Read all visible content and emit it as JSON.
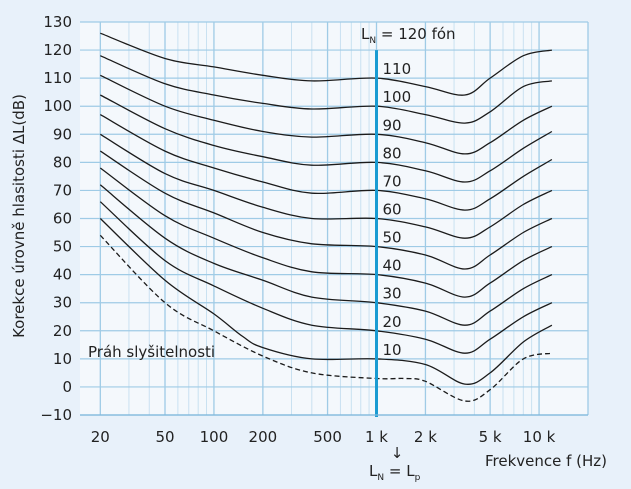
{
  "chart_data": {
    "type": "line",
    "title": "",
    "ylabel": "Korekce úrovně hlasitosti ΔL(dB)",
    "xlabel": "Frekvence f (Hz)",
    "x_scale": "log",
    "xlim": [
      15,
      20000
    ],
    "ylim": [
      -10,
      130
    ],
    "y_ticks": [
      -10,
      0,
      10,
      20,
      30,
      40,
      50,
      60,
      70,
      80,
      90,
      100,
      110,
      120,
      130
    ],
    "x_ticks": [
      {
        "value": 20,
        "label": "20"
      },
      {
        "value": 50,
        "label": "50"
      },
      {
        "value": 100,
        "label": "100"
      },
      {
        "value": 200,
        "label": "200"
      },
      {
        "value": 500,
        "label": "500"
      },
      {
        "value": 1000,
        "label": "1 k"
      },
      {
        "value": 2000,
        "label": "2 k"
      },
      {
        "value": 5000,
        "label": "5 k"
      },
      {
        "value": 10000,
        "label": "10 k"
      }
    ],
    "grid": true,
    "reference_line": {
      "x": 1000,
      "color": "#1a9bd2"
    },
    "ln_label": {
      "L": "L",
      "sub": "N",
      "rest": " = 120 fón"
    },
    "bottom_annotation": {
      "arrow": "↓",
      "l1": "L",
      "s1": "N",
      "eq": " = ",
      "l2": "L",
      "s2": "p"
    },
    "threshold_label": "Práh slyšitelnosti",
    "series": [
      {
        "name": "120",
        "label": "",
        "style": "solid",
        "x": [
          1000
        ],
        "y": [
          120
        ]
      },
      {
        "name": "110",
        "label": "110",
        "style": "solid",
        "x": [
          20,
          50,
          100,
          200,
          400,
          1000,
          2000,
          3500,
          5000,
          8000,
          12000
        ],
        "y": [
          126,
          117,
          114,
          111,
          109,
          110,
          107,
          104,
          110,
          118,
          120
        ]
      },
      {
        "name": "100",
        "label": "100",
        "style": "solid",
        "x": [
          20,
          50,
          100,
          200,
          400,
          1000,
          2000,
          3500,
          5000,
          8000,
          12000
        ],
        "y": [
          118,
          108,
          104,
          101,
          99,
          100,
          97,
          94,
          98,
          107,
          109
        ]
      },
      {
        "name": "90",
        "label": "90",
        "style": "solid",
        "x": [
          20,
          50,
          100,
          200,
          400,
          1000,
          2000,
          3500,
          5000,
          8000,
          12000
        ],
        "y": [
          111,
          100,
          95,
          91,
          89,
          90,
          87,
          83,
          87,
          95,
          100
        ]
      },
      {
        "name": "80",
        "label": "80",
        "style": "solid",
        "x": [
          20,
          50,
          100,
          200,
          400,
          1000,
          2000,
          3500,
          5000,
          8000,
          12000
        ],
        "y": [
          104,
          92,
          86,
          82,
          79,
          80,
          77,
          73,
          77,
          85,
          91
        ]
      },
      {
        "name": "70",
        "label": "70",
        "style": "solid",
        "x": [
          20,
          50,
          100,
          200,
          400,
          1000,
          2000,
          3500,
          5000,
          8000,
          12000
        ],
        "y": [
          97,
          84,
          78,
          73,
          69,
          70,
          67,
          63,
          67,
          75,
          81
        ]
      },
      {
        "name": "60",
        "label": "60",
        "style": "solid",
        "x": [
          20,
          50,
          100,
          200,
          400,
          1000,
          2000,
          3500,
          5000,
          8000,
          12000
        ],
        "y": [
          90,
          76,
          70,
          64,
          60,
          60,
          57,
          53,
          57,
          65,
          70
        ]
      },
      {
        "name": "50",
        "label": "50",
        "style": "solid",
        "x": [
          20,
          50,
          100,
          200,
          400,
          1000,
          2000,
          3500,
          5000,
          8000,
          12000
        ],
        "y": [
          84,
          69,
          62,
          55,
          51,
          50,
          47,
          42,
          47,
          55,
          60
        ]
      },
      {
        "name": "40",
        "label": "40",
        "style": "solid",
        "x": [
          20,
          50,
          100,
          200,
          400,
          1000,
          2000,
          3500,
          5000,
          8000,
          12000
        ],
        "y": [
          78,
          61,
          53,
          46,
          41,
          40,
          37,
          32,
          37,
          45,
          50
        ]
      },
      {
        "name": "30",
        "label": "30",
        "style": "solid",
        "x": [
          20,
          50,
          100,
          200,
          400,
          1000,
          2000,
          3500,
          5000,
          8000,
          12000
        ],
        "y": [
          72,
          53,
          44,
          38,
          32,
          30,
          27,
          22,
          27,
          35,
          40
        ]
      },
      {
        "name": "20",
        "label": "20",
        "style": "solid",
        "x": [
          20,
          50,
          100,
          200,
          400,
          1000,
          2000,
          3500,
          5000,
          8000,
          12000
        ],
        "y": [
          66,
          45,
          36,
          28,
          22,
          20,
          17,
          12,
          17,
          25,
          30
        ]
      },
      {
        "name": "10",
        "label": "10",
        "style": "solid",
        "x": [
          20,
          50,
          100,
          150,
          200,
          400,
          1000,
          2000,
          3500,
          5000,
          8000,
          12000
        ],
        "y": [
          60,
          38,
          26,
          18,
          14,
          10,
          10,
          8,
          1,
          5,
          16,
          22
        ]
      },
      {
        "name": "Práh slyšitelnosti",
        "label": "",
        "style": "dashed",
        "x": [
          20,
          50,
          100,
          200,
          400,
          1000,
          1500,
          2000,
          3500,
          5000,
          8000,
          12000
        ],
        "y": [
          54,
          30,
          20,
          11,
          5,
          3,
          3,
          2,
          -5,
          -1,
          10,
          12
        ]
      }
    ]
  }
}
